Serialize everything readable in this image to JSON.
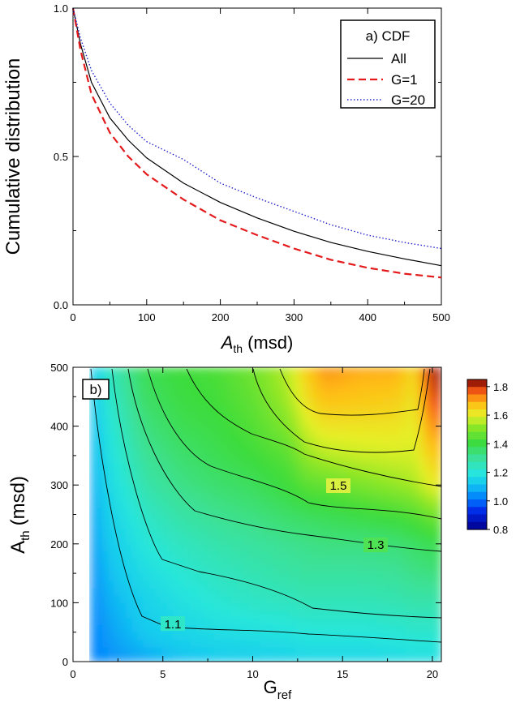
{
  "chart_data": [
    {
      "type": "line",
      "panel_label": "a) CDF",
      "ylabel": "Cumulative distribution",
      "xlabel_main": "A",
      "xlabel_sub": "th",
      "xlabel_unit": "(msd)",
      "xlim": [
        0,
        500
      ],
      "ylim": [
        0,
        1
      ],
      "xticks": [
        "0",
        "100",
        "200",
        "300",
        "400",
        "500"
      ],
      "yticks": [
        "0.0",
        "0.5",
        "1.0"
      ],
      "x": [
        0,
        10,
        25,
        50,
        75,
        100,
        150,
        200,
        250,
        300,
        350,
        400,
        450,
        500
      ],
      "series": [
        {
          "name": "All",
          "color": "#000000",
          "dash": "solid",
          "values": [
            1.0,
            0.88,
            0.75,
            0.63,
            0.555,
            0.495,
            0.41,
            0.345,
            0.293,
            0.248,
            0.21,
            0.18,
            0.155,
            0.132
          ]
        },
        {
          "name": "G=1",
          "color": "#e41a1c",
          "dash": "dashed",
          "values": [
            1.0,
            0.86,
            0.71,
            0.58,
            0.5,
            0.44,
            0.355,
            0.285,
            0.235,
            0.19,
            0.152,
            0.125,
            0.105,
            0.092
          ]
        },
        {
          "name": "G=20",
          "color": "#2222cc",
          "dash": "dotted",
          "values": [
            1.0,
            0.9,
            0.79,
            0.68,
            0.605,
            0.55,
            0.49,
            0.41,
            0.36,
            0.315,
            0.27,
            0.235,
            0.21,
            0.19
          ]
        }
      ]
    },
    {
      "type": "heatmap",
      "panel_label": "b)",
      "ylabel_main": "A",
      "ylabel_sub": "th",
      "ylabel_unit": "(msd)",
      "xlabel_main": "G",
      "xlabel_sub": "ref",
      "xlim": [
        0,
        20.5
      ],
      "ylim": [
        0,
        500
      ],
      "xticks": [
        "0",
        "5",
        "10",
        "15",
        "20"
      ],
      "yticks": [
        "0",
        "100",
        "200",
        "300",
        "400",
        "500"
      ],
      "colorbar_ticks": [
        "0.8",
        "1.0",
        "1.2",
        "1.4",
        "1.6",
        "1.8"
      ],
      "colorbar_range": [
        0.8,
        1.85
      ],
      "contour_labels": [
        "1.1",
        "1.3",
        "1.5"
      ],
      "note": "Colormap (jet-like) of ratio values as a function of Gref and Ath; values near 1.0 at low Gref/Ath, rising to ~1.8 near Gref 14-20 and Ath 400-500.",
      "grid_x": [
        1,
        2,
        4,
        6,
        8,
        10,
        12,
        13,
        14,
        16,
        18,
        19,
        20,
        20.5
      ],
      "grid_y": [
        0,
        50,
        100,
        150,
        200,
        250,
        300,
        350,
        400,
        450,
        500
      ],
      "z": [
        [
          1.02,
          1.04,
          1.07,
          1.1,
          1.12,
          1.13,
          1.14,
          1.15,
          1.15,
          1.15,
          1.16,
          1.17,
          1.17,
          1.17
        ],
        [
          1.02,
          1.06,
          1.12,
          1.15,
          1.17,
          1.18,
          1.19,
          1.2,
          1.2,
          1.2,
          1.21,
          1.22,
          1.22,
          1.22
        ],
        [
          1.03,
          1.08,
          1.14,
          1.18,
          1.21,
          1.23,
          1.24,
          1.25,
          1.25,
          1.25,
          1.26,
          1.27,
          1.27,
          1.27
        ],
        [
          1.04,
          1.1,
          1.17,
          1.21,
          1.24,
          1.26,
          1.28,
          1.29,
          1.29,
          1.29,
          1.3,
          1.32,
          1.33,
          1.33
        ],
        [
          1.05,
          1.12,
          1.2,
          1.24,
          1.27,
          1.29,
          1.31,
          1.32,
          1.33,
          1.33,
          1.34,
          1.36,
          1.38,
          1.38
        ],
        [
          1.06,
          1.14,
          1.23,
          1.28,
          1.31,
          1.33,
          1.36,
          1.37,
          1.38,
          1.4,
          1.42,
          1.44,
          1.48,
          1.48
        ],
        [
          1.07,
          1.16,
          1.27,
          1.32,
          1.35,
          1.37,
          1.41,
          1.45,
          1.46,
          1.49,
          1.52,
          1.54,
          1.6,
          1.6
        ],
        [
          1.08,
          1.18,
          1.3,
          1.35,
          1.38,
          1.41,
          1.45,
          1.52,
          1.55,
          1.57,
          1.58,
          1.58,
          1.66,
          1.66
        ],
        [
          1.09,
          1.2,
          1.33,
          1.38,
          1.4,
          1.44,
          1.5,
          1.58,
          1.62,
          1.62,
          1.62,
          1.6,
          1.72,
          1.72
        ],
        [
          1.1,
          1.22,
          1.36,
          1.4,
          1.42,
          1.46,
          1.54,
          1.63,
          1.68,
          1.67,
          1.66,
          1.62,
          1.78,
          1.78
        ],
        [
          1.1,
          1.24,
          1.38,
          1.41,
          1.43,
          1.48,
          1.56,
          1.66,
          1.72,
          1.7,
          1.7,
          1.64,
          1.82,
          1.82
        ]
      ]
    }
  ]
}
